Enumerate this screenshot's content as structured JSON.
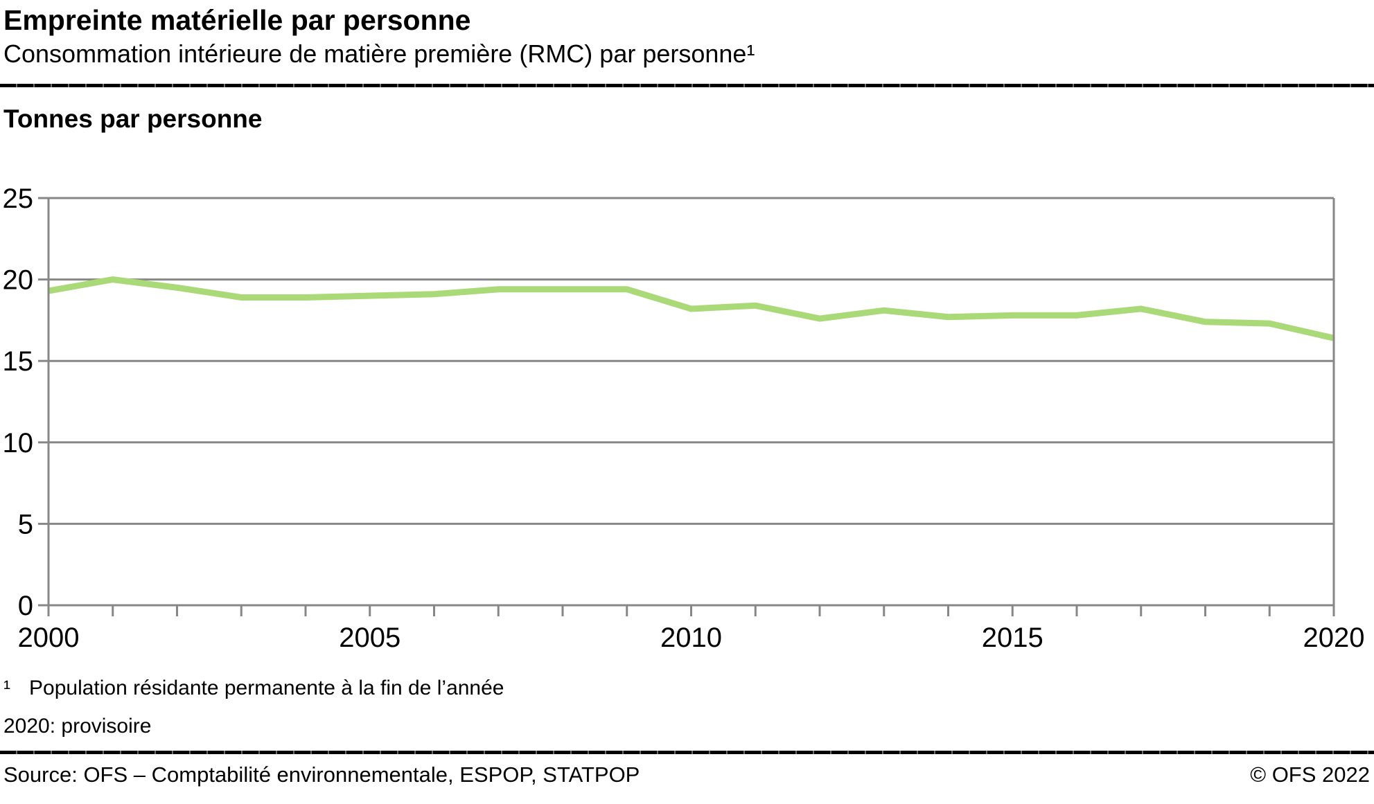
{
  "header": {
    "title": "Empreinte matérielle par personne",
    "subtitle": "Consommation intérieure de matière première (RMC) par personne¹"
  },
  "chart": {
    "axis_title": "Tonnes par personne",
    "chart_data": {
      "type": "line",
      "title": "Empreinte matérielle par personne",
      "ylabel": "Tonnes par personne",
      "xlabel": "",
      "x": [
        2000,
        2001,
        2002,
        2003,
        2004,
        2005,
        2006,
        2007,
        2008,
        2009,
        2010,
        2011,
        2012,
        2013,
        2014,
        2015,
        2016,
        2017,
        2018,
        2019,
        2020
      ],
      "values": [
        19.3,
        20.0,
        19.5,
        18.9,
        18.9,
        19.0,
        19.1,
        19.4,
        19.4,
        19.4,
        18.2,
        18.4,
        17.6,
        18.1,
        17.7,
        17.8,
        17.8,
        18.2,
        17.4,
        17.3,
        16.4
      ],
      "ylim": [
        0,
        25
      ],
      "yticks": [
        0,
        5,
        10,
        15,
        20,
        25
      ],
      "xtick_labels": [
        "2000",
        "2005",
        "2010",
        "2015",
        "2020"
      ],
      "grid": true,
      "legend": "none",
      "line_color": "#aad978",
      "grid_color": "#878787",
      "text_color": "#000000"
    }
  },
  "footnotes": {
    "marker": "¹",
    "line1": "Population résidante permanente à la fin de l’année",
    "line2": "2020: provisoire"
  },
  "footer": {
    "source": "Source: OFS – Comptabilité environnementale, ESPOP, STATPOP",
    "copyright": "© OFS 2022"
  }
}
